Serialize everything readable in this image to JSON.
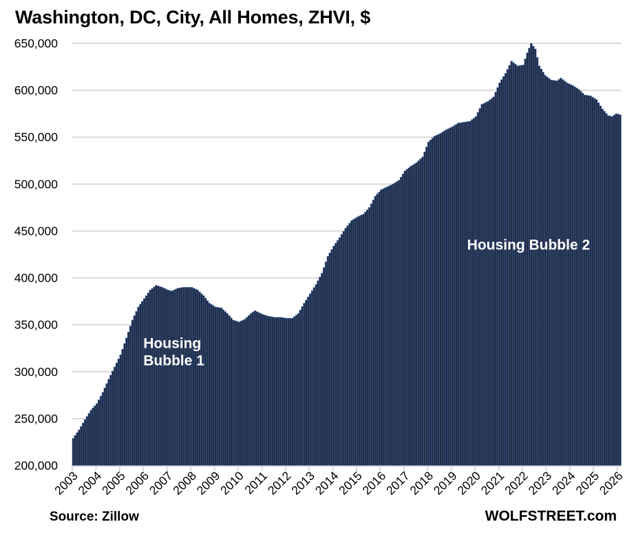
{
  "chart_data": {
    "type": "bar",
    "title": "Washington, DC, City, All Homes, ZHVI, $",
    "xlabel": "",
    "ylabel": "",
    "ylim": [
      200000,
      650000
    ],
    "grid": true,
    "legend": "none",
    "y_ticks": [
      200000,
      250000,
      300000,
      350000,
      400000,
      450000,
      500000,
      550000,
      600000,
      650000
    ],
    "y_tick_labels": [
      "200,000",
      "250,000",
      "300,000",
      "350,000",
      "400,000",
      "450,000",
      "500,000",
      "550,000",
      "600,000",
      "650,000"
    ],
    "x_tick_labels": [
      "2003",
      "2004",
      "2005",
      "2006",
      "2007",
      "2008",
      "2009",
      "2010",
      "2011",
      "2012",
      "2013",
      "2014",
      "2015",
      "2016",
      "2017",
      "2018",
      "2019",
      "2020",
      "2021",
      "2022",
      "2023",
      "2024",
      "2025",
      "2026"
    ],
    "frequency": "monthly",
    "start": "2003-01",
    "end": "2026-02",
    "anchor_points": [
      [
        "2003-01",
        229000
      ],
      [
        "2003-04",
        238000
      ],
      [
        "2003-07",
        249000
      ],
      [
        "2003-10",
        259000
      ],
      [
        "2004-01",
        266000
      ],
      [
        "2004-04",
        278000
      ],
      [
        "2004-07",
        292000
      ],
      [
        "2004-10",
        305000
      ],
      [
        "2005-01",
        318000
      ],
      [
        "2005-04",
        336000
      ],
      [
        "2005-07",
        355000
      ],
      [
        "2005-10",
        369000
      ],
      [
        "2006-01",
        378000
      ],
      [
        "2006-04",
        387000
      ],
      [
        "2006-07",
        392000
      ],
      [
        "2006-10",
        390000
      ],
      [
        "2007-01",
        387000
      ],
      [
        "2007-03",
        386000
      ],
      [
        "2007-06",
        389000
      ],
      [
        "2007-09",
        390000
      ],
      [
        "2008-01",
        390000
      ],
      [
        "2008-04",
        387000
      ],
      [
        "2008-07",
        381000
      ],
      [
        "2008-10",
        373000
      ],
      [
        "2009-01",
        369000
      ],
      [
        "2009-04",
        368000
      ],
      [
        "2009-07",
        362000
      ],
      [
        "2009-10",
        355000
      ],
      [
        "2010-01",
        353000
      ],
      [
        "2010-04",
        356000
      ],
      [
        "2010-07",
        362000
      ],
      [
        "2010-09",
        365000
      ],
      [
        "2011-01",
        361000
      ],
      [
        "2011-04",
        359000
      ],
      [
        "2011-07",
        358000
      ],
      [
        "2011-10",
        358000
      ],
      [
        "2012-01",
        357000
      ],
      [
        "2012-04",
        357000
      ],
      [
        "2012-07",
        362000
      ],
      [
        "2012-10",
        373000
      ],
      [
        "2013-01",
        383000
      ],
      [
        "2013-04",
        393000
      ],
      [
        "2013-07",
        405000
      ],
      [
        "2013-10",
        423000
      ],
      [
        "2014-01",
        434000
      ],
      [
        "2014-04",
        443000
      ],
      [
        "2014-07",
        453000
      ],
      [
        "2014-10",
        461000
      ],
      [
        "2015-01",
        465000
      ],
      [
        "2015-04",
        468000
      ],
      [
        "2015-07",
        475000
      ],
      [
        "2015-10",
        487000
      ],
      [
        "2016-01",
        494000
      ],
      [
        "2016-04",
        497000
      ],
      [
        "2016-07",
        500000
      ],
      [
        "2016-10",
        504000
      ],
      [
        "2017-01",
        514000
      ],
      [
        "2017-04",
        519000
      ],
      [
        "2017-07",
        523000
      ],
      [
        "2017-10",
        529000
      ],
      [
        "2018-01",
        545000
      ],
      [
        "2018-04",
        551000
      ],
      [
        "2018-07",
        554000
      ],
      [
        "2018-10",
        558000
      ],
      [
        "2019-01",
        561000
      ],
      [
        "2019-04",
        565000
      ],
      [
        "2019-07",
        566000
      ],
      [
        "2019-10",
        567000
      ],
      [
        "2020-01",
        572000
      ],
      [
        "2020-04",
        585000
      ],
      [
        "2020-07",
        588000
      ],
      [
        "2020-10",
        593000
      ],
      [
        "2021-01",
        608000
      ],
      [
        "2021-04",
        618000
      ],
      [
        "2021-07",
        631000
      ],
      [
        "2021-10",
        626000
      ],
      [
        "2022-01",
        627000
      ],
      [
        "2022-03",
        640000
      ],
      [
        "2022-05",
        650000
      ],
      [
        "2022-07",
        644000
      ],
      [
        "2022-09",
        626000
      ],
      [
        "2022-12",
        616000
      ],
      [
        "2023-03",
        611000
      ],
      [
        "2023-06",
        610000
      ],
      [
        "2023-08",
        613000
      ],
      [
        "2023-11",
        608000
      ],
      [
        "2024-02",
        605000
      ],
      [
        "2024-05",
        601000
      ],
      [
        "2024-08",
        595000
      ],
      [
        "2024-11",
        594000
      ],
      [
        "2025-02",
        590000
      ],
      [
        "2025-05",
        580000
      ],
      [
        "2025-08",
        573000
      ],
      [
        "2025-10",
        572000
      ],
      [
        "2025-12",
        575000
      ],
      [
        "2026-02",
        574000
      ]
    ],
    "annotations": [
      {
        "text_lines": [
          "Housing",
          "Bubble 1"
        ],
        "anchor": "2006-01",
        "value": 325000
      },
      {
        "text_lines": [
          "Housing Bubble 2"
        ],
        "anchor": "2019-09",
        "value": 430000
      }
    ],
    "colors": {
      "bar_fill": "#202a3c",
      "bar_edge": "#3e66b0",
      "grid": "#d9d9d9",
      "annotation": "#ffffff"
    }
  },
  "footer": {
    "source": "Source: Zillow",
    "brand": "WOLFSTREET.com"
  }
}
